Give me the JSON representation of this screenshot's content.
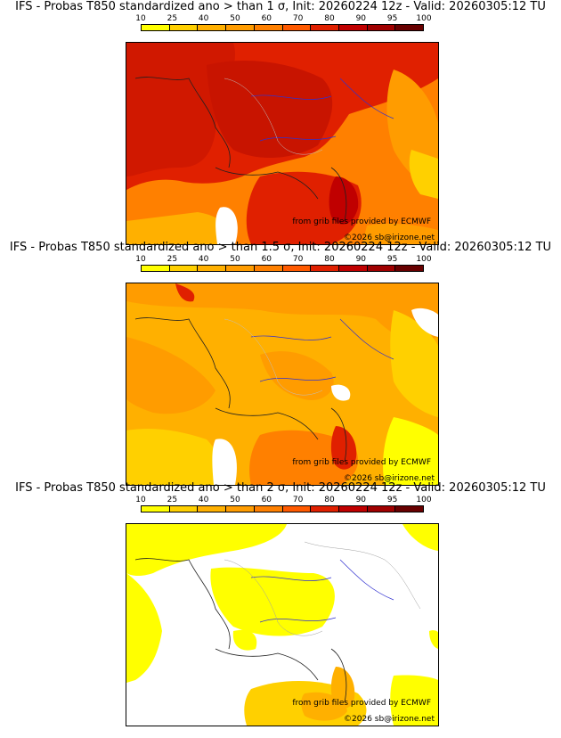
{
  "colorbar": {
    "labels": [
      "10",
      "25",
      "40",
      "50",
      "60",
      "70",
      "80",
      "90",
      "95",
      "100"
    ],
    "colors": [
      "#ffff00",
      "#ffd000",
      "#ffb000",
      "#ff9c00",
      "#ff8000",
      "#ff5a00",
      "#e02000",
      "#c00000",
      "#a00000",
      "#680000"
    ]
  },
  "credits": {
    "grib": "from grib files provided by ECMWF",
    "copyright": "©2026 sb@irizone.net"
  },
  "panels": [
    {
      "title": "IFS - Probas T850  standardized ano > than 1 σ, Init: 20260224 12z - Valid: 20260305:12 TU"
    },
    {
      "title": "IFS - Probas T850  standardized ano > than 1.5 σ, Init: 20260224 12z - Valid: 20260305:12 TU"
    },
    {
      "title": "IFS - Probas T850  standardized ano > than 2 σ, Init: 20260224 12z - Valid: 20260305:12 TU"
    }
  ]
}
